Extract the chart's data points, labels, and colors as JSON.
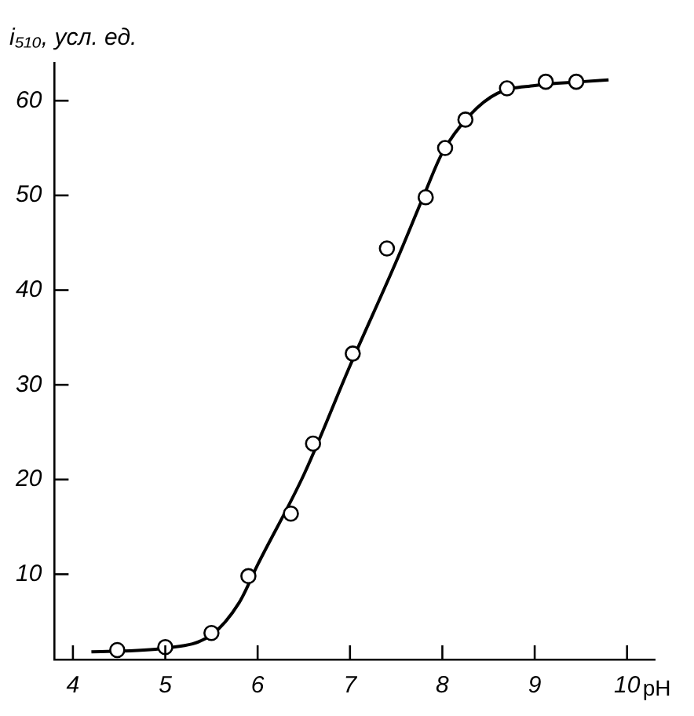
{
  "chart_data": {
    "type": "scatter",
    "xlabel": "pH",
    "ylabel": "i₅₁₀, усл. ед.",
    "xlim": [
      3.8,
      10.3
    ],
    "ylim": [
      1,
      64
    ],
    "xticks": [
      4,
      5,
      6,
      7,
      8,
      9,
      10
    ],
    "yticks": [
      10,
      20,
      30,
      40,
      50,
      60
    ],
    "grid": false,
    "legend": false,
    "marker": "circle",
    "series": [
      {
        "color": "#000000",
        "x": [
          4.48,
          5.0,
          5.5,
          5.9,
          6.36,
          6.6,
          7.03,
          7.4,
          7.82,
          8.03,
          8.25,
          8.7,
          9.12,
          9.45
        ],
        "values": [
          2.0,
          2.3,
          3.8,
          9.8,
          16.4,
          23.8,
          33.3,
          44.4,
          49.8,
          55,
          58,
          61.3,
          62,
          62
        ]
      },
      {
        "type": "line",
        "color": "#000000",
        "marker": "none",
        "x": [
          4.2,
          5.0,
          5.5,
          5.8,
          6.0,
          6.5,
          7.0,
          7.5,
          7.8,
          8.0,
          8.3,
          8.6,
          9.0,
          9.5,
          9.8
        ],
        "values": [
          1.8,
          2.2,
          3.6,
          7,
          11,
          20.5,
          32,
          43,
          50,
          54.5,
          58.5,
          60.8,
          61.6,
          62,
          62.2
        ]
      }
    ]
  }
}
